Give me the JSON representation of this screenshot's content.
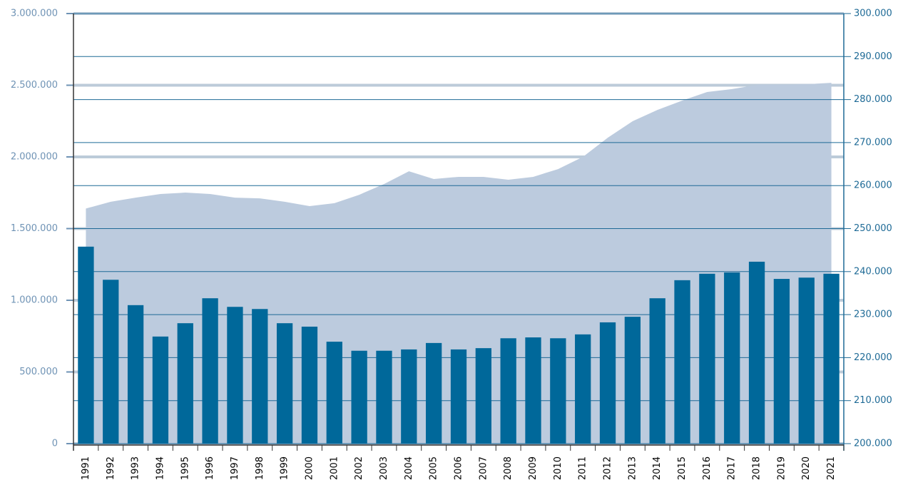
{
  "chart_data": {
    "type": "bar",
    "categories": [
      "1991",
      "1992",
      "1993",
      "1994",
      "1995",
      "1996",
      "1997",
      "1998",
      "1999",
      "2000",
      "2001",
      "2002",
      "2003",
      "2004",
      "2005",
      "2006",
      "2007",
      "2008",
      "2009",
      "2010",
      "2011",
      "2012",
      "2013",
      "2014",
      "2015",
      "2016",
      "2017",
      "2018",
      "2019",
      "2020",
      "2021"
    ],
    "series": [
      {
        "type": "area",
        "axis": "y",
        "color": "#bccbde",
        "values": [
          1640000,
          1687000,
          1716000,
          1741000,
          1751000,
          1741000,
          1716000,
          1711000,
          1687000,
          1657000,
          1677000,
          1736000,
          1811000,
          1900000,
          1846000,
          1861000,
          1861000,
          1841000,
          1861000,
          1915000,
          2000000,
          2134000,
          2249000,
          2328000,
          2393000,
          2453000,
          2473000,
          2502000,
          2502000,
          2507000,
          2517000
        ]
      },
      {
        "type": "bar",
        "axis": "y2",
        "color": "#00689a",
        "values": [
          245800,
          238100,
          232200,
          224900,
          228000,
          233800,
          231800,
          231300,
          228000,
          227200,
          223700,
          221600,
          221600,
          221900,
          223400,
          221900,
          222200,
          224500,
          224700,
          224500,
          225400,
          228200,
          229500,
          233800,
          238000,
          239500,
          239800,
          242300,
          238300,
          238600,
          239500
        ]
      }
    ],
    "ylim": [
      0,
      3000000
    ],
    "yticks": [
      0,
      {
        "value": 500000,
        "label": "500.000"
      },
      {
        "value": 1000000,
        "label": "1.000.000"
      },
      {
        "value": 1500000,
        "label": "1.500.000"
      },
      {
        "value": 2000000,
        "label": "2.000.000"
      },
      {
        "value": 2500000,
        "label": "2.500.000"
      },
      {
        "value": 3000000,
        "label": "3.000.000"
      }
    ],
    "y2lim": [
      200000,
      300000
    ],
    "y2ticks": [
      {
        "value": 200000,
        "label": "200.000"
      },
      {
        "value": 210000,
        "label": "210.000"
      },
      {
        "value": 220000,
        "label": "220.000"
      },
      {
        "value": 230000,
        "label": "230.000"
      },
      {
        "value": 240000,
        "label": "240.000"
      },
      {
        "value": 250000,
        "label": "250.000"
      },
      {
        "value": 260000,
        "label": "260.000"
      },
      {
        "value": 270000,
        "label": "270.000"
      },
      {
        "value": 280000,
        "label": "280.000"
      },
      {
        "value": 290000,
        "label": "290.000"
      },
      {
        "value": 300000,
        "label": "300.000"
      }
    ],
    "grid": true
  }
}
